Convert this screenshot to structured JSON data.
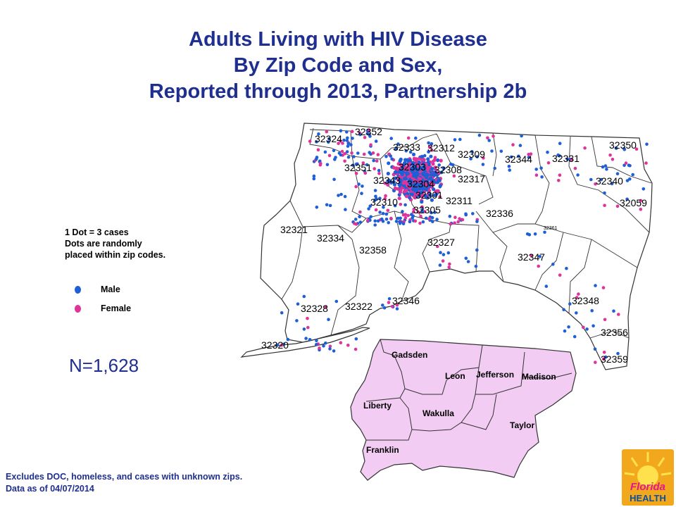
{
  "title": {
    "line1": "Adults Living with HIV Disease",
    "line2": "By Zip Code and Sex,",
    "line3": "Reported through 2013, Partnership 2b"
  },
  "legend": {
    "line1": "1 Dot = 3 cases",
    "line2": "Dots are randomly",
    "line3": "placed within zip codes.",
    "items": [
      {
        "label": "Male",
        "color": "#1f5fd6"
      },
      {
        "label": "Female",
        "color": "#e0339a"
      }
    ]
  },
  "total": "N=1,628",
  "footnote": {
    "line1": "Excludes DOC, homeless, and cases with unknown zips.",
    "line2": "Data as of 04/07/2014"
  },
  "zip_codes": [
    "32324",
    "32352",
    "32333",
    "32312",
    "32309",
    "32344",
    "32331",
    "32350",
    "32351",
    "32303",
    "32308",
    "32343",
    "32304",
    "32317",
    "32340",
    "32301",
    "32310",
    "32311",
    "32305",
    "32059",
    "32336",
    "32321",
    "32334",
    "32358",
    "32327",
    "32361",
    "32347",
    "32346",
    "32328",
    "32322",
    "32348",
    "32356",
    "32320",
    "32359"
  ],
  "counties": [
    "Gadsden",
    "Leon",
    "Jefferson",
    "Madison",
    "Liberty",
    "Wakulla",
    "Taylor",
    "Franklin"
  ],
  "colors": {
    "title": "#1f2f8f",
    "county_fill": "#f2ccf2",
    "map_fill": "#ffffff",
    "boundary": "#333333",
    "logo_bg": "#f2a81d"
  },
  "logo": {
    "line1": "Florida",
    "line2": "HEALTH"
  }
}
